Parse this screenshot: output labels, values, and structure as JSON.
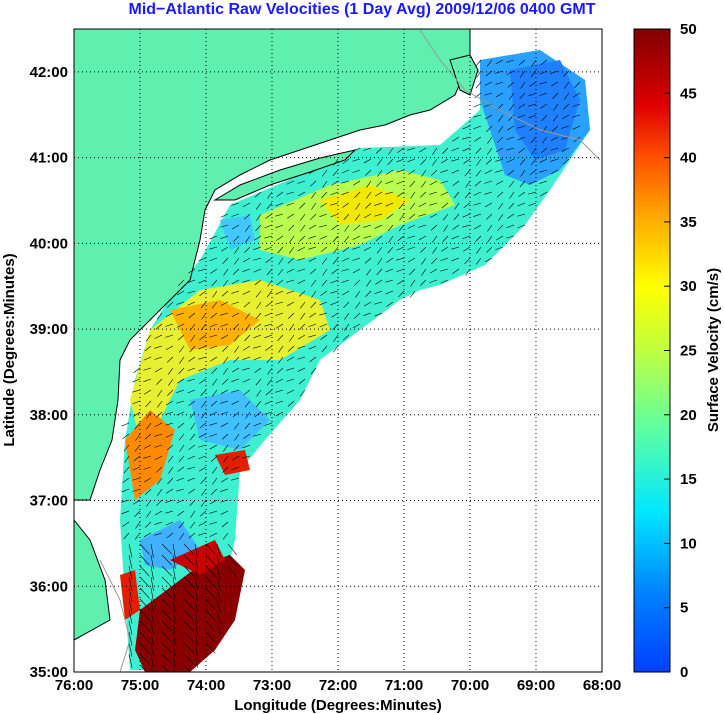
{
  "title": "Mid−Atlantic Raw Velocities (1 Day Avg) 2009/12/06 0400 GMT",
  "map": {
    "xlabel": "Longitude (Degrees:Minutes)",
    "ylabel": "Latitude (Degrees:Minutes)",
    "lon_range": [
      -76,
      -68
    ],
    "lat_range": [
      35,
      42.5
    ],
    "x_ticks": [
      "76:00",
      "75:00",
      "74:00",
      "73:00",
      "72:00",
      "71:00",
      "70:00",
      "69:00",
      "68:00"
    ],
    "y_ticks": [
      "35:00",
      "36:00",
      "37:00",
      "38:00",
      "39:00",
      "40:00",
      "41:00",
      "42:00"
    ],
    "x_tick_values": [
      -76,
      -75,
      -74,
      -73,
      -72,
      -71,
      -70,
      -69,
      -68
    ],
    "y_tick_values": [
      35,
      36,
      37,
      38,
      39,
      40,
      41,
      42
    ],
    "land_color": "#5fefaf",
    "grid": "dotted"
  },
  "colorbar": {
    "label": "Surface Velocity (cm/s)",
    "range": [
      0,
      50
    ],
    "ticks": [
      "0",
      "5",
      "10",
      "15",
      "20",
      "25",
      "30",
      "35",
      "40",
      "45",
      "50"
    ],
    "colormap": "jet"
  }
}
